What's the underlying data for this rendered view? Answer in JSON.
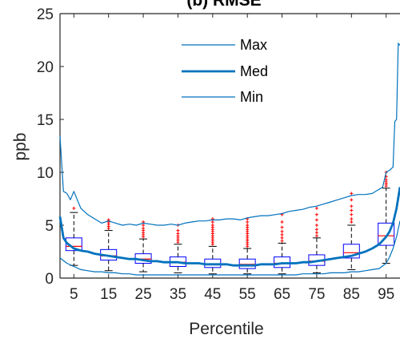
{
  "chart_data": {
    "type": "box",
    "title": "(b) RMSE",
    "xlabel": "Percentile",
    "ylabel": "ppb",
    "ylim": [
      0,
      25
    ],
    "xlim": [
      1,
      99
    ],
    "yticks": [
      0,
      5,
      10,
      15,
      20,
      25
    ],
    "xticks": [
      5,
      15,
      25,
      35,
      45,
      55,
      65,
      75,
      85,
      95
    ],
    "legend_position": "top",
    "colors": {
      "line": "#0072bd",
      "box": "#0000ff",
      "median": "#ff0000",
      "outlier": "#ff0000",
      "whisker": "#000000",
      "axis": "#262626"
    },
    "boxes": [
      {
        "x": 5,
        "whisker_low": 1.2,
        "q1": 2.6,
        "median": 3.0,
        "q3": 3.8,
        "whisker_high": 6.2,
        "outliers": [
          6.6
        ]
      },
      {
        "x": 15,
        "whisker_low": 0.7,
        "q1": 1.7,
        "median": 2.1,
        "q3": 2.7,
        "whisker_high": 4.5,
        "outliers": [
          4.7,
          4.9,
          5.1,
          5.3,
          5.5
        ]
      },
      {
        "x": 25,
        "whisker_low": 0.6,
        "q1": 1.4,
        "median": 1.8,
        "q3": 2.3,
        "whisker_high": 3.7,
        "outliers": [
          3.9,
          4.1,
          4.3,
          4.5,
          4.7,
          5.0,
          5.3
        ]
      },
      {
        "x": 35,
        "whisker_low": 0.5,
        "q1": 1.1,
        "median": 1.5,
        "q3": 2.0,
        "whisker_high": 3.2,
        "outliers": [
          3.4,
          3.6,
          3.8,
          4.0,
          4.2,
          4.5,
          5.0
        ]
      },
      {
        "x": 45,
        "whisker_low": 0.4,
        "q1": 1.0,
        "median": 1.3,
        "q3": 1.8,
        "whisker_high": 3.0,
        "outliers": [
          3.2,
          3.4,
          3.6,
          3.8,
          4.0,
          4.2,
          4.4,
          4.6,
          4.8,
          5.0,
          5.3,
          5.6
        ]
      },
      {
        "x": 55,
        "whisker_low": 0.4,
        "q1": 0.9,
        "median": 1.3,
        "q3": 1.8,
        "whisker_high": 2.8,
        "outliers": [
          3.0,
          3.2,
          3.4,
          3.6,
          3.8,
          4.0,
          4.2,
          4.4,
          4.6,
          4.8,
          5.0,
          5.3,
          5.6
        ]
      },
      {
        "x": 65,
        "whisker_low": 0.4,
        "q1": 1.0,
        "median": 1.4,
        "q3": 2.0,
        "whisker_high": 3.3,
        "outliers": [
          3.5,
          3.8,
          4.1,
          4.4,
          4.8,
          5.3,
          6.0
        ]
      },
      {
        "x": 75,
        "whisker_low": 0.5,
        "q1": 1.2,
        "median": 1.6,
        "q3": 2.2,
        "whisker_high": 3.8,
        "outliers": [
          4.0,
          4.3,
          4.6,
          5.0,
          5.5,
          6.0,
          6.6
        ]
      },
      {
        "x": 85,
        "whisker_low": 0.8,
        "q1": 1.9,
        "median": 2.4,
        "q3": 3.2,
        "whisker_high": 5.0,
        "outliers": [
          5.3,
          5.6,
          6.0,
          6.4,
          6.8,
          7.4,
          8.0
        ]
      },
      {
        "x": 95,
        "whisker_low": 1.4,
        "q1": 3.1,
        "median": 4.0,
        "q3": 5.2,
        "whisker_high": 8.5,
        "outliers": [
          8.7,
          8.9,
          9.1,
          9.3,
          9.6,
          10.0
        ]
      }
    ],
    "series": [
      {
        "name": "Max",
        "style": "thin",
        "x": [
          1,
          2,
          3,
          4,
          5,
          7,
          9,
          11,
          13,
          15,
          17,
          19,
          21,
          23,
          25,
          27,
          29,
          31,
          33,
          35,
          37,
          39,
          41,
          43,
          45,
          47,
          49,
          51,
          53,
          55,
          57,
          59,
          61,
          63,
          65,
          67,
          69,
          71,
          73,
          75,
          77,
          79,
          81,
          83,
          85,
          87,
          89,
          91,
          93,
          94,
          95,
          96,
          97,
          97.5,
          98,
          98.5,
          99
        ],
        "values": [
          13.4,
          8.2,
          8.0,
          7.4,
          8.2,
          6.6,
          6.0,
          5.6,
          5.2,
          5.4,
          5.2,
          5.0,
          5.1,
          5.0,
          5.2,
          5.1,
          5.0,
          5.0,
          5.1,
          5.0,
          5.2,
          5.3,
          5.4,
          5.4,
          5.5,
          5.5,
          5.6,
          5.6,
          5.5,
          5.7,
          5.8,
          5.9,
          5.9,
          6.0,
          6.1,
          6.3,
          6.4,
          6.5,
          6.7,
          6.8,
          7.0,
          7.2,
          7.4,
          7.6,
          7.8,
          7.9,
          7.9,
          8.0,
          8.4,
          8.6,
          10.0,
          10.2,
          10.5,
          14.8,
          15.0,
          22.2,
          22.0
        ]
      },
      {
        "name": "Med",
        "style": "thick",
        "x": [
          1,
          2,
          3,
          5,
          7,
          9,
          11,
          13,
          15,
          17,
          19,
          21,
          23,
          25,
          27,
          29,
          31,
          33,
          35,
          37,
          39,
          41,
          43,
          45,
          47,
          49,
          51,
          53,
          55,
          57,
          59,
          61,
          63,
          65,
          67,
          69,
          71,
          73,
          75,
          77,
          79,
          81,
          83,
          85,
          87,
          89,
          91,
          93,
          95,
          96,
          97,
          98,
          99
        ],
        "values": [
          5.8,
          3.8,
          3.3,
          2.8,
          2.6,
          2.5,
          2.3,
          2.2,
          2.1,
          2.0,
          1.9,
          1.8,
          1.8,
          1.7,
          1.6,
          1.6,
          1.5,
          1.5,
          1.5,
          1.4,
          1.4,
          1.4,
          1.3,
          1.3,
          1.3,
          1.3,
          1.2,
          1.2,
          1.2,
          1.2,
          1.3,
          1.3,
          1.3,
          1.4,
          1.4,
          1.4,
          1.5,
          1.5,
          1.6,
          1.7,
          1.8,
          1.9,
          2.0,
          2.1,
          2.3,
          2.5,
          2.8,
          3.2,
          3.9,
          4.4,
          5.2,
          6.6,
          8.6
        ]
      },
      {
        "name": "Min",
        "style": "thin",
        "x": [
          1,
          3,
          5,
          7,
          9,
          11,
          13,
          15,
          17,
          19,
          21,
          23,
          25,
          27,
          29,
          31,
          33,
          35,
          37,
          39,
          41,
          43,
          45,
          47,
          49,
          51,
          53,
          55,
          57,
          59,
          61,
          63,
          65,
          67,
          69,
          71,
          73,
          75,
          77,
          79,
          81,
          83,
          85,
          87,
          89,
          91,
          93,
          95,
          96,
          97,
          98,
          99
        ],
        "values": [
          1.9,
          1.4,
          1.1,
          0.8,
          0.7,
          0.6,
          0.6,
          0.5,
          0.5,
          0.4,
          0.4,
          0.3,
          0.3,
          0.3,
          0.3,
          0.3,
          0.3,
          0.3,
          0.3,
          0.3,
          0.3,
          0.3,
          0.3,
          0.3,
          0.3,
          0.3,
          0.3,
          0.3,
          0.3,
          0.3,
          0.3,
          0.3,
          0.3,
          0.3,
          0.3,
          0.4,
          0.4,
          0.4,
          0.4,
          0.5,
          0.5,
          0.5,
          0.6,
          0.6,
          0.7,
          0.8,
          0.9,
          1.4,
          2.0,
          2.8,
          3.9,
          5.4
        ]
      }
    ]
  }
}
